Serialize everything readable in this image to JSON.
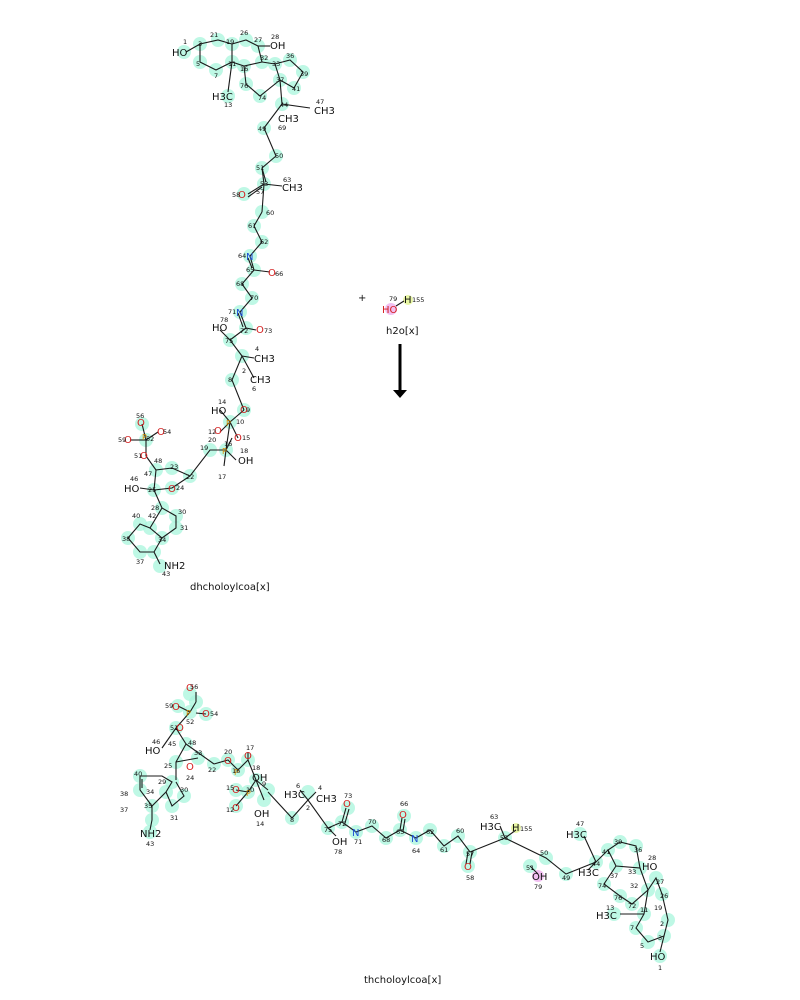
{
  "reaction": {
    "plus_sign": "+",
    "reactant_1_label": "dhcholoylcoa[x]",
    "reactant_2_label": "h2o[x]",
    "product_label": "thcholoylcoa[x]",
    "water": {
      "atom_o": "HO",
      "atom_h": "H",
      "num_o": "79",
      "num_h": "155"
    }
  },
  "top_atoms": {
    "ho1": "HO",
    "oh28": "OH",
    "h3c13": "H3C",
    "ch3_47": "CH3",
    "ch3_69": "CH3",
    "ch3_63": "CH3",
    "o58": "O",
    "n64": "N",
    "o66": "O",
    "n71": "N",
    "ho78": "HO",
    "o73": "O",
    "ch3_4": "CH3",
    "ch3_6": "CH3",
    "ho14": "HO",
    "o9": "O",
    "o12": "O",
    "o15": "O",
    "oh18": "OH",
    "o56": "O",
    "o59": "O",
    "o54": "O",
    "o51": "O",
    "ho46": "HO",
    "o24": "O",
    "nh2": "NH2"
  },
  "bottom_atoms": {
    "o56": "O",
    "o59": "O",
    "o54": "O",
    "o51": "O",
    "ho46": "HO",
    "o24": "O",
    "o20": "O",
    "o17": "O",
    "oh18": "OH",
    "o15": "O",
    "o12": "O",
    "oh14": "OH",
    "h3c6": "H3C",
    "ch3_4": "CH3",
    "o73": "O",
    "oh78": "OH",
    "n71": "N",
    "o66": "O",
    "n64": "N",
    "o58": "O",
    "h3c63": "H3C",
    "h155": "H",
    "oh79": "OH",
    "h3c47": "H3C",
    "h3c69": "H3C",
    "oh28": "HO",
    "h3c13": "H3C",
    "ho1": "HO",
    "nh2": "NH2"
  }
}
